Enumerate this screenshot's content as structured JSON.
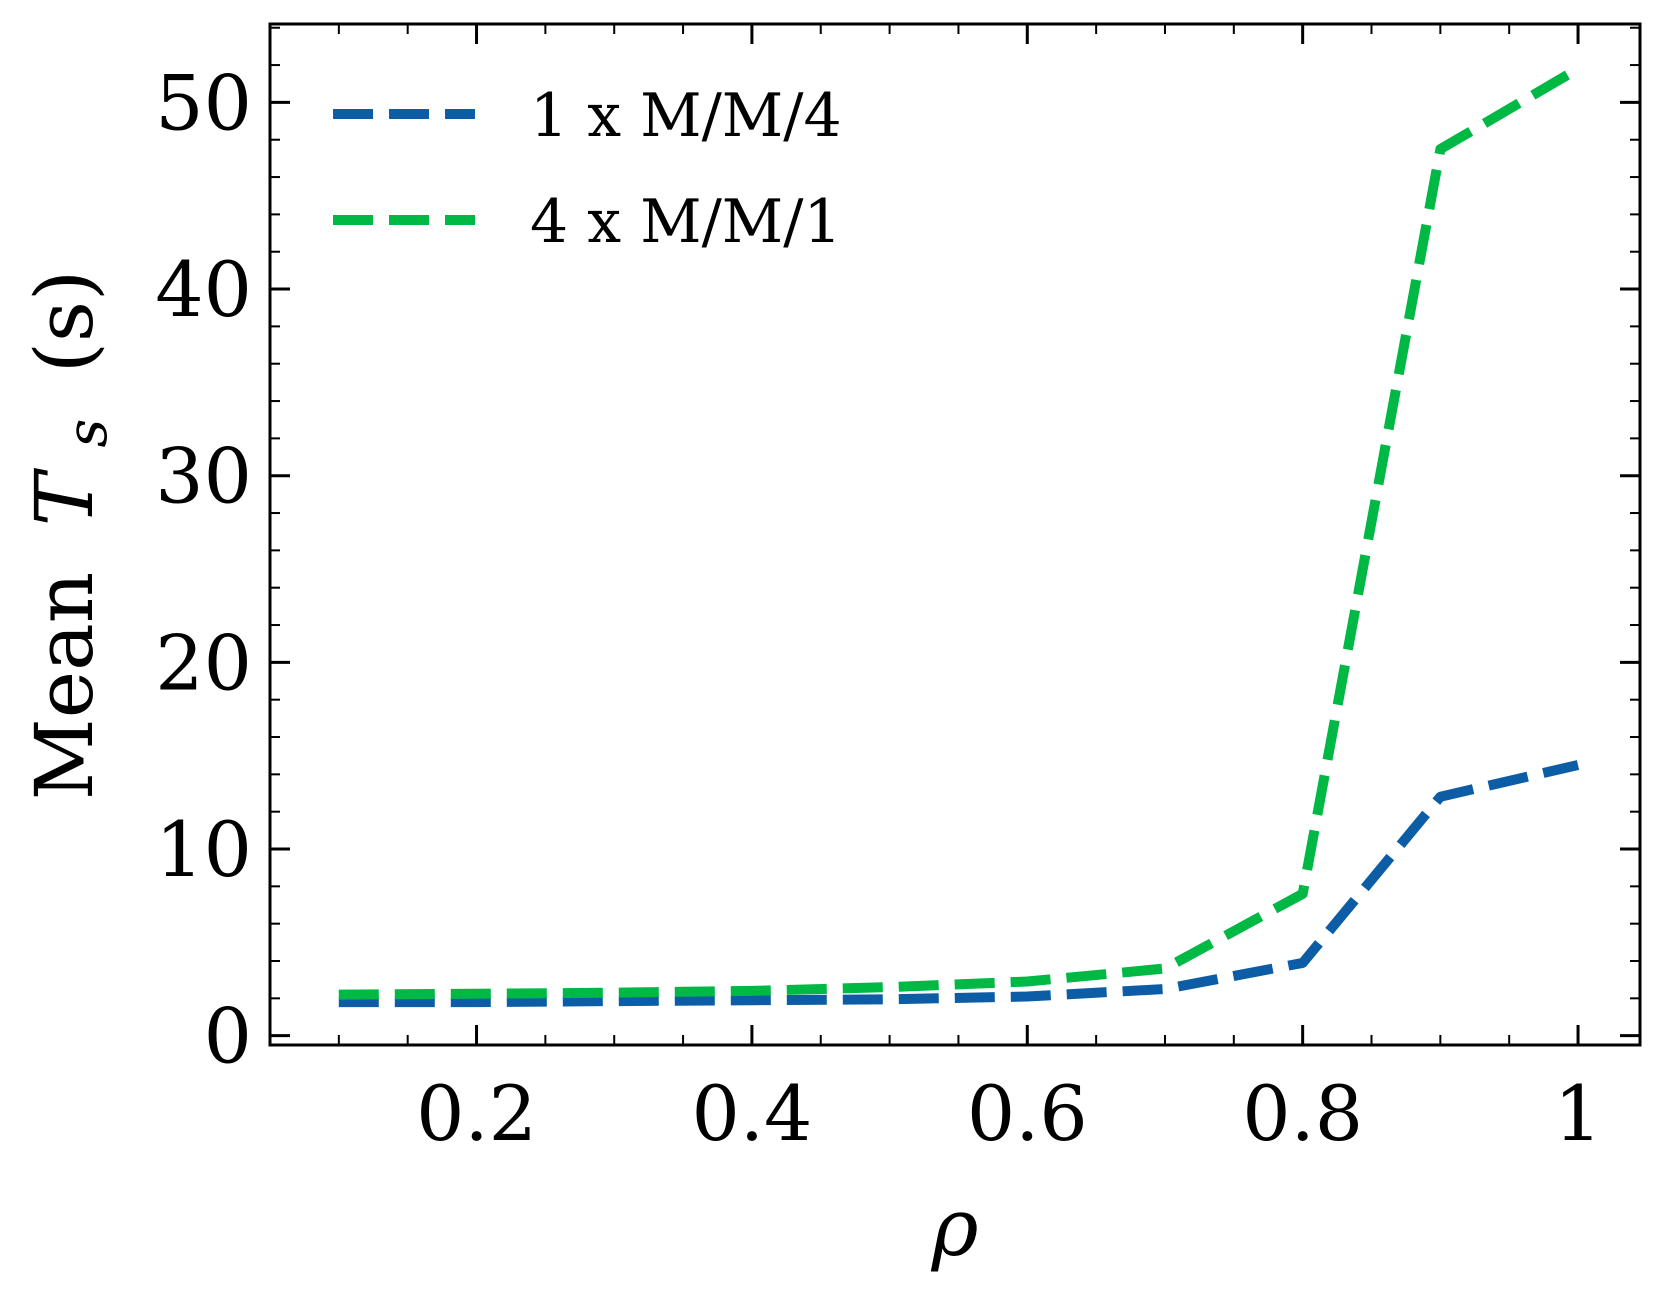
{
  "chart_data": {
    "type": "line",
    "title": "",
    "xlabel": "ρ",
    "ylabel_prefix": "Mean",
    "ylabel_var": "T",
    "ylabel_sub": "s",
    "ylabel_unit": "(s)",
    "xlim": [
      0.05,
      1.045
    ],
    "ylim": [
      -0.5,
      54.2
    ],
    "x_ticks": [
      0.2,
      0.4,
      0.6,
      0.8,
      1.0
    ],
    "x_tick_labels": [
      "0.2",
      "0.4",
      "0.6",
      "0.8",
      "1"
    ],
    "y_ticks": [
      0,
      10,
      20,
      30,
      40,
      50
    ],
    "y_tick_labels": [
      "0",
      "10",
      "20",
      "30",
      "40",
      "50"
    ],
    "x_minor_step": 0.05,
    "y_minor_step": 2,
    "grid": false,
    "legend_position": "top-left",
    "x": [
      0.1,
      0.2,
      0.3,
      0.4,
      0.5,
      0.6,
      0.7,
      0.8,
      0.9,
      1.0
    ],
    "series": [
      {
        "name": "1 x M/M/4",
        "color": "#0C5DA5",
        "dash": "dashed",
        "values": [
          1.8,
          1.8,
          1.85,
          1.9,
          1.95,
          2.1,
          2.5,
          3.9,
          12.8,
          14.5
        ]
      },
      {
        "name": "4 x M/M/1",
        "color": "#00B945",
        "dash": "dashed",
        "values": [
          2.2,
          2.25,
          2.3,
          2.4,
          2.6,
          2.9,
          3.6,
          7.6,
          47.5,
          51.8
        ]
      }
    ]
  }
}
